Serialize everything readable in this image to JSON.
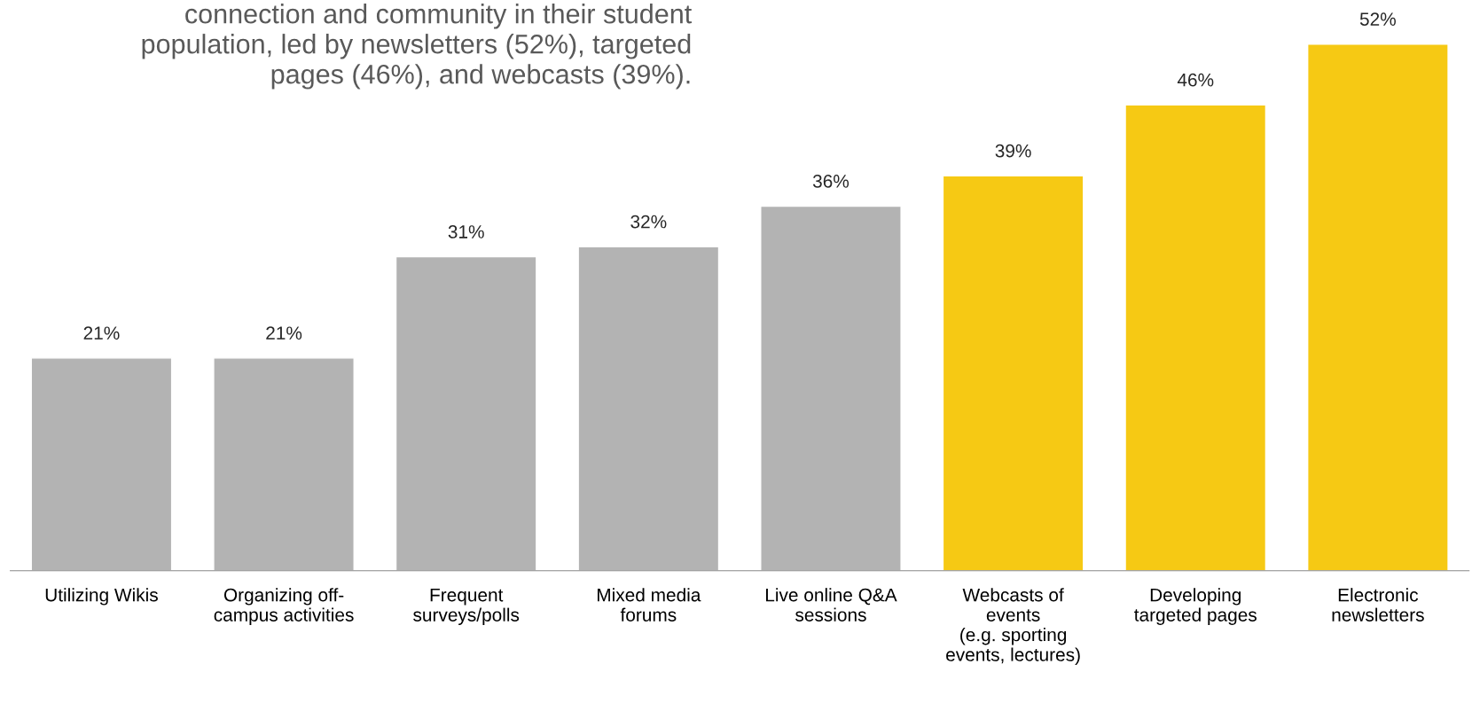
{
  "chart_data": {
    "type": "bar",
    "title": "connection and community in their student\npopulation, led by newsletters (52%), targeted\npages (46%), and webcasts (39%).",
    "categories": [
      "Utilizing Wikis",
      "Organizing off-\ncampus activities",
      "Frequent\nsurveys/polls",
      "Mixed media\nforums",
      "Live online Q&A\nsessions",
      "Webcasts of\nevents\n(e.g. sporting\nevents, lectures)",
      "Developing\ntargeted pages",
      "Electronic\nnewsletters"
    ],
    "values": [
      21,
      21,
      31,
      32,
      36,
      39,
      46,
      52
    ],
    "colors": [
      "#b3b3b3",
      "#b3b3b3",
      "#b3b3b3",
      "#b3b3b3",
      "#b3b3b3",
      "#f6c914",
      "#f6c914",
      "#f6c914"
    ],
    "value_labels": [
      "21%",
      "21%",
      "31%",
      "32%",
      "36%",
      "39%",
      "46%",
      "52%"
    ]
  }
}
